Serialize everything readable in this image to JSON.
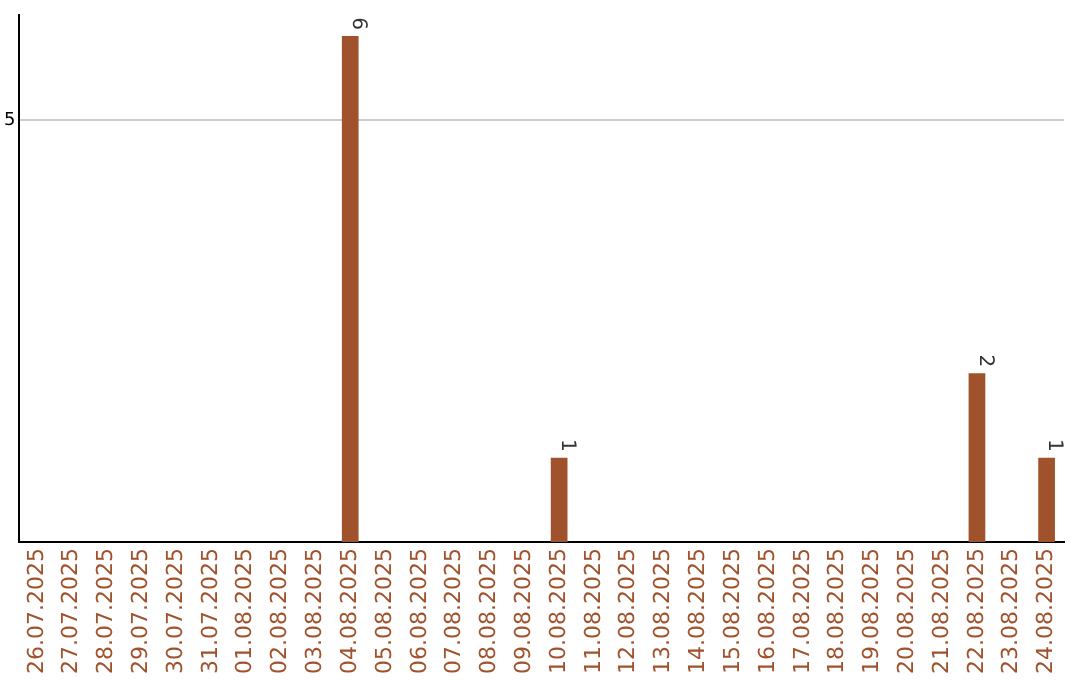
{
  "chart_data": {
    "type": "bar",
    "categories": [
      "26.07.2025",
      "27.07.2025",
      "28.07.2025",
      "29.07.2025",
      "30.07.2025",
      "31.07.2025",
      "01.08.2025",
      "02.08.2025",
      "03.08.2025",
      "04.08.2025",
      "05.08.2025",
      "06.08.2025",
      "07.08.2025",
      "08.08.2025",
      "09.08.2025",
      "10.08.2025",
      "11.08.2025",
      "12.08.2025",
      "13.08.2025",
      "14.08.2025",
      "15.08.2025",
      "16.08.2025",
      "17.08.2025",
      "18.08.2025",
      "19.08.2025",
      "20.08.2025",
      "21.08.2025",
      "22.08.2025",
      "23.08.2025",
      "24.08.2025"
    ],
    "values": [
      0,
      0,
      0,
      0,
      0,
      0,
      0,
      0,
      0,
      6,
      0,
      0,
      0,
      0,
      0,
      1,
      0,
      0,
      0,
      0,
      0,
      0,
      0,
      0,
      0,
      0,
      0,
      2,
      0,
      1
    ],
    "value_labels": [
      null,
      null,
      null,
      null,
      null,
      null,
      null,
      null,
      null,
      "6",
      null,
      null,
      null,
      null,
      null,
      "1",
      null,
      null,
      null,
      null,
      null,
      null,
      null,
      null,
      null,
      null,
      null,
      "2",
      null,
      "1"
    ],
    "color": "#a0522d",
    "ylim": [
      0,
      6.25
    ],
    "yticks": [
      5
    ],
    "grid": "y",
    "legend": false
  }
}
